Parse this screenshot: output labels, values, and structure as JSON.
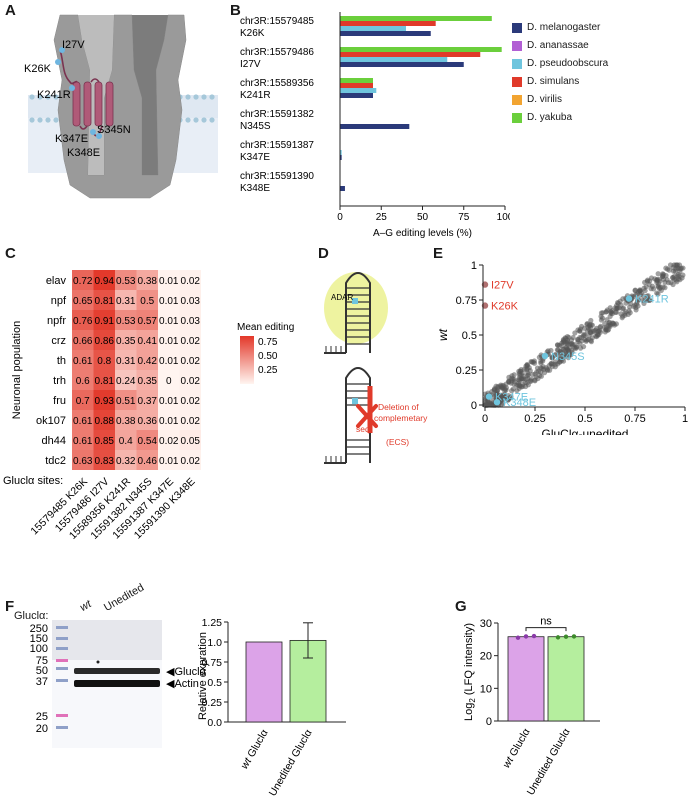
{
  "panels": {
    "a": "A",
    "b": "B",
    "c": "C",
    "d": "D",
    "e": "E",
    "f": "F",
    "g": "G"
  },
  "panel_a": {
    "labels": [
      "I27V",
      "K26K",
      "K241R",
      "K347E",
      "S345N",
      "K348E"
    ]
  },
  "chart_b": {
    "type": "bar",
    "orientation": "horizontal",
    "categories": [
      [
        "chr3R:15579485",
        "K26K"
      ],
      [
        "chr3R:15579486",
        "I27V"
      ],
      [
        "chr3R:15589356",
        "K241R"
      ],
      [
        "chr3R:15591382",
        "N345S"
      ],
      [
        "chr3R:15591387",
        "K347E"
      ],
      [
        "chr3R:15591390",
        "K348E"
      ]
    ],
    "series": [
      {
        "name": "D. melanogaster",
        "color": "#2b3a7a",
        "values": [
          55,
          75,
          20,
          42,
          1,
          3
        ]
      },
      {
        "name": "D. ananassae",
        "color": "#b25fd4",
        "values": [
          0,
          0,
          0,
          0,
          0,
          0
        ]
      },
      {
        "name": "D. pseudoobscura",
        "color": "#6fc5de",
        "values": [
          40,
          65,
          22,
          0,
          1,
          0
        ]
      },
      {
        "name": "D. simulans",
        "color": "#e03a2a",
        "values": [
          58,
          85,
          20,
          0,
          0,
          0
        ]
      },
      {
        "name": "D. virilis",
        "color": "#f2a431",
        "values": [
          0,
          0,
          10,
          0,
          0,
          0
        ]
      },
      {
        "name": "D. yakuba",
        "color": "#6bcf3c",
        "values": [
          92,
          98,
          20,
          0,
          0,
          0
        ]
      }
    ],
    "xlabel": "A–G editing levels (%)",
    "xticks": [
      "0",
      "25",
      "50",
      "75",
      "100"
    ],
    "xlim": [
      0,
      100
    ]
  },
  "heatmap_c": {
    "type": "heatmap",
    "rows": [
      "elav",
      "npf",
      "npfr",
      "crz",
      "th",
      "trh",
      "fru",
      "ok107",
      "dh44",
      "tdc2"
    ],
    "columns": [
      "15579485 K26K",
      "15579486 I27V",
      "15589356 K241R",
      "15591382 N345S",
      "15591387 K347E",
      "15591390 K348E"
    ],
    "values": [
      [
        "0.72",
        "0.94",
        "0.53",
        "0.38",
        "0.01",
        "0.02"
      ],
      [
        "0.65",
        "0.81",
        "0.31",
        "0.5",
        "0.01",
        "0.03"
      ],
      [
        "0.76",
        "0.91",
        "0.53",
        "0.57",
        "0.01",
        "0.03"
      ],
      [
        "0.66",
        "0.86",
        "0.35",
        "0.41",
        "0.01",
        "0.02"
      ],
      [
        "0.61",
        "0.8",
        "0.31",
        "0.42",
        "0.01",
        "0.02"
      ],
      [
        "0.6",
        "0.81",
        "0.24",
        "0.35",
        "0",
        "0.02"
      ],
      [
        "0.7",
        "0.93",
        "0.51",
        "0.37",
        "0.01",
        "0.02"
      ],
      [
        "0.61",
        "0.88",
        "0.38",
        "0.36",
        "0.01",
        "0.02"
      ],
      [
        "0.61",
        "0.85",
        "0.4",
        "0.54",
        "0.02",
        "0.05"
      ],
      [
        "0.63",
        "0.83",
        "0.32",
        "0.46",
        "0.01",
        "0.02"
      ]
    ],
    "ylabel": "Neuronal population",
    "xaxis_prefix": "Gluclα sites:",
    "legend_title": "Mean editing",
    "legend_ticks": [
      "0.75",
      "0.50",
      "0.25"
    ]
  },
  "panel_d": {
    "adar_label": "ADAR",
    "deletion_label_1": "Deletion of",
    "deletion_label_2": "complemetary",
    "deletion_label_3": "seq",
    "deletion_label_4": "(ECS)"
  },
  "scatter_e": {
    "type": "scatter",
    "xlabel": "GluClα-unedited",
    "ylabel": "wt",
    "xticks": [
      "0",
      "0.25",
      "0.5",
      "0.75",
      "1"
    ],
    "yticks": [
      "0",
      "0.25",
      "0.5",
      "0.75",
      "1"
    ],
    "xlim": [
      0,
      1
    ],
    "ylim": [
      0,
      1
    ],
    "highlighted": [
      {
        "label": "I27V",
        "x": 0.0,
        "y": 0.86,
        "color": "#e03a2a"
      },
      {
        "label": "K26K",
        "x": 0.0,
        "y": 0.71,
        "color": "#e03a2a"
      },
      {
        "label": "K241R",
        "x": 0.72,
        "y": 0.76,
        "color": "#6fc5de"
      },
      {
        "label": "N345S",
        "x": 0.3,
        "y": 0.35,
        "color": "#6fc5de"
      },
      {
        "label": "K347E",
        "x": 0.02,
        "y": 0.06,
        "color": "#6fc5de"
      },
      {
        "label": "K348E",
        "x": 0.06,
        "y": 0.02,
        "color": "#6fc5de"
      }
    ]
  },
  "blot_f": {
    "row_label": "Gluclα:",
    "lane_wt": "wt",
    "lane_unedited": "Unedited",
    "markers": [
      "250",
      "150",
      "100",
      "75",
      "50",
      "37",
      "25",
      "20"
    ],
    "band_labels": [
      "Gluclα",
      "Actin"
    ]
  },
  "chart_f": {
    "type": "bar",
    "categories": [
      "wt Gluclα",
      "Unedited Gluclα"
    ],
    "cat_italic": [
      "wt",
      ""
    ],
    "cat_rest": [
      " Gluclα",
      "Unedited Gluclα"
    ],
    "values": [
      1.0,
      1.02
    ],
    "error": [
      0,
      0.22
    ],
    "colors": [
      "#dca3e8",
      "#b5ee9e"
    ],
    "ylabel": "Relative expration",
    "yticks": [
      "0.0",
      "0.25",
      "0.5",
      "0.75",
      "1.0",
      "1.25"
    ],
    "ylim": [
      0,
      1.25
    ],
    "sig": "ns"
  },
  "chart_g": {
    "type": "bar",
    "categories": [
      "wt Gluclα",
      "Unedited Gluclα"
    ],
    "cat_italic": [
      "wt",
      ""
    ],
    "cat_rest": [
      " Gluclα",
      "Unedited Gluclα"
    ],
    "values": [
      25.8,
      25.8
    ],
    "points": [
      [
        25.5,
        25.9,
        26.0
      ],
      [
        25.6,
        25.8,
        25.9
      ]
    ],
    "colors": [
      "#dca3e8",
      "#b5ee9e"
    ],
    "ylabel_main": "Log",
    "ylabel_sub": "2",
    "ylabel_rest": " (LFQ intensity)",
    "yticks": [
      "0",
      "10",
      "20",
      "30"
    ],
    "ylim": [
      0,
      30
    ],
    "sig": "ns"
  }
}
